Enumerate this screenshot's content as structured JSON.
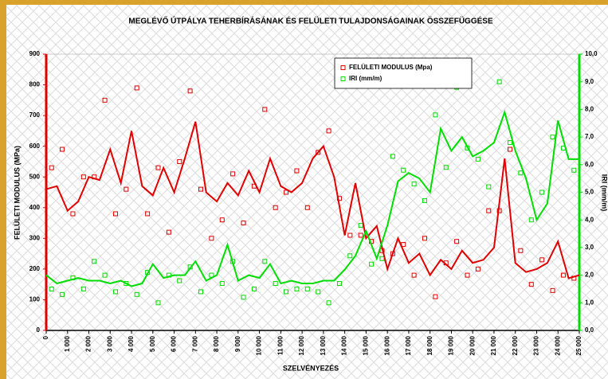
{
  "chart_data": {
    "type": "scatter",
    "title": "MEGLÉVŐ ÚTPÁLYA TEHERBÍRÁSÁNAK ÉS FELÜLETI TULAJDONSÁGAINAK ÖSSZEFÜGGÉSE",
    "x_label": "SZELVÉNYEZÉS",
    "y_label": "FELÜLETI MODULUS (MPa)",
    "y2_label": "IRI (mm/m)",
    "xlim": [
      0,
      25000
    ],
    "xticks": [
      0,
      {
        "value": 1000,
        "label": "1 000"
      },
      {
        "value": 2000,
        "label": "2 000"
      },
      {
        "value": 3000,
        "label": "3 000"
      },
      {
        "value": 4000,
        "label": "4 000"
      },
      {
        "value": 5000,
        "label": "5 000"
      },
      {
        "value": 6000,
        "label": "6 000"
      },
      {
        "value": 7000,
        "label": "7 000"
      },
      {
        "value": 8000,
        "label": "8 000"
      },
      {
        "value": 9000,
        "label": "9 000"
      },
      {
        "value": 10000,
        "label": "10 000"
      },
      {
        "value": 11000,
        "label": "11 000"
      },
      {
        "value": 12000,
        "label": "12 000"
      },
      {
        "value": 13000,
        "label": "13 000"
      },
      {
        "value": 14000,
        "label": "14 000"
      },
      {
        "value": 15000,
        "label": "15 000"
      },
      {
        "value": 16000,
        "label": "16 000"
      },
      {
        "value": 17000,
        "label": "17 000"
      },
      {
        "value": 18000,
        "label": "18 000"
      },
      {
        "value": 19000,
        "label": "19 000"
      },
      {
        "value": 20000,
        "label": "20 000"
      },
      {
        "value": 21000,
        "label": "21 000"
      },
      {
        "value": 22000,
        "label": "22 000"
      },
      {
        "value": 23000,
        "label": "23 000"
      },
      {
        "value": 24000,
        "label": "24 000"
      },
      {
        "value": 25000,
        "label": "25 000"
      }
    ],
    "ylim": [
      0,
      900
    ],
    "yticks": [
      0,
      100,
      200,
      300,
      400,
      500,
      600,
      700,
      800,
      900
    ],
    "y2lim": [
      0,
      10
    ],
    "y2ticks": [
      {
        "value": 0,
        "label": "0,0"
      },
      {
        "value": 1,
        "label": "1,0"
      },
      {
        "value": 2,
        "label": "2,0"
      },
      {
        "value": 3,
        "label": "3,0"
      },
      {
        "value": 4,
        "label": "4,0"
      },
      {
        "value": 5,
        "label": "5,0"
      },
      {
        "value": 6,
        "label": "6,0"
      },
      {
        "value": 7,
        "label": "7,0"
      },
      {
        "value": 8,
        "label": "8,0"
      },
      {
        "value": 9,
        "label": "9,0"
      },
      {
        "value": 10,
        "label": "10,0"
      }
    ],
    "legend": "top",
    "series": [
      {
        "name": "FELÜLETI MODULUS (Mpa)",
        "color": "#e00000",
        "kind": "scatter",
        "x": [
          250,
          750,
          1250,
          1750,
          2250,
          2750,
          3250,
          3750,
          4250,
          4750,
          5250,
          5750,
          6250,
          6750,
          7250,
          7750,
          8250,
          8750,
          9250,
          9750,
          10250,
          10750,
          11250,
          11750,
          12250,
          12750,
          13250,
          13750,
          14250,
          14750,
          15250,
          15750,
          16250,
          16750,
          17250,
          17750,
          18250,
          18750,
          19250,
          19750,
          20250,
          20750,
          21250,
          21750,
          22250,
          22750,
          23250,
          23750,
          24250,
          24750
        ],
        "values": [
          530,
          590,
          380,
          500,
          500,
          750,
          380,
          460,
          790,
          380,
          530,
          320,
          550,
          780,
          460,
          300,
          360,
          510,
          350,
          470,
          720,
          400,
          450,
          520,
          400,
          580,
          650,
          430,
          310,
          310,
          290,
          260,
          250,
          280,
          180,
          300,
          110,
          220,
          290,
          180,
          200,
          390,
          390,
          590,
          260,
          150,
          230,
          130,
          180,
          170
        ]
      },
      {
        "name": "IRI (mm/m)",
        "color": "#00dd00",
        "kind": "scatter",
        "axis": "y2",
        "x": [
          250,
          750,
          1250,
          1750,
          2250,
          2750,
          3250,
          3750,
          4250,
          4750,
          5250,
          5750,
          6250,
          6750,
          7250,
          7750,
          8250,
          8750,
          9250,
          9750,
          10250,
          10750,
          11250,
          11750,
          12250,
          12750,
          13250,
          13750,
          14250,
          14750,
          15250,
          15750,
          16250,
          16750,
          17250,
          17750,
          18250,
          18750,
          19250,
          19750,
          20250,
          20750,
          21250,
          21750,
          22250,
          22750,
          23250,
          23750,
          24250,
          24750
        ],
        "values": [
          1.5,
          1.3,
          1.9,
          1.5,
          2.5,
          2.0,
          1.4,
          1.7,
          1.3,
          2.1,
          1.0,
          2.0,
          1.8,
          2.3,
          1.4,
          2.0,
          1.7,
          2.5,
          1.2,
          1.5,
          2.5,
          1.7,
          1.4,
          1.5,
          1.5,
          1.4,
          1.0,
          1.7,
          2.7,
          3.8,
          2.4,
          2.6,
          6.3,
          5.8,
          5.3,
          4.7,
          7.8,
          5.9,
          8.8,
          6.6,
          6.2,
          5.2,
          9.0,
          6.8,
          5.7,
          4.0,
          5.0,
          7.0,
          6.6,
          5.8
        ]
      },
      {
        "color": "#e00000",
        "kind": "line",
        "x": [
          0,
          500,
          1000,
          1500,
          2000,
          2500,
          3000,
          3500,
          4000,
          4500,
          5000,
          5500,
          6000,
          6500,
          7000,
          7500,
          8000,
          8500,
          9000,
          9500,
          10000,
          10500,
          11000,
          11500,
          12000,
          12500,
          13000,
          13500,
          14000,
          14500,
          15000,
          15500,
          16000,
          16500,
          17000,
          17500,
          18000,
          18500,
          19000,
          19500,
          20000,
          20500,
          21000,
          21500,
          22000,
          22500,
          23000,
          23500,
          24000,
          24500,
          25000
        ],
        "values": [
          460,
          470,
          390,
          420,
          500,
          490,
          590,
          480,
          650,
          470,
          440,
          530,
          450,
          560,
          680,
          450,
          420,
          480,
          440,
          520,
          450,
          560,
          470,
          450,
          480,
          560,
          600,
          500,
          310,
          480,
          300,
          340,
          200,
          300,
          220,
          250,
          180,
          230,
          200,
          260,
          220,
          230,
          270,
          560,
          220,
          190,
          200,
          220,
          290,
          170,
          180
        ]
      },
      {
        "color": "#00dd00",
        "kind": "line",
        "axis": "y2",
        "x": [
          0,
          500,
          1000,
          1500,
          2000,
          2500,
          3000,
          3500,
          4000,
          4500,
          5000,
          5500,
          6000,
          6500,
          7000,
          7500,
          8000,
          8500,
          9000,
          9500,
          10000,
          10500,
          11000,
          11500,
          12000,
          12500,
          13000,
          13500,
          14000,
          14500,
          15000,
          15500,
          16000,
          16500,
          17000,
          17500,
          18000,
          18500,
          19000,
          19500,
          20000,
          20500,
          21000,
          21500,
          22000,
          22500,
          23000,
          23500,
          24000,
          24500,
          25000
        ],
        "values": [
          2.0,
          1.7,
          1.8,
          1.9,
          1.8,
          1.8,
          1.7,
          1.8,
          1.6,
          1.7,
          2.4,
          1.9,
          2.0,
          2.0,
          2.5,
          1.8,
          2.0,
          3.1,
          1.8,
          2.0,
          1.9,
          2.4,
          1.7,
          1.8,
          1.7,
          1.7,
          1.8,
          1.8,
          2.2,
          2.7,
          3.6,
          2.6,
          3.8,
          5.4,
          5.7,
          5.5,
          5.0,
          7.3,
          6.5,
          7.0,
          6.3,
          6.5,
          6.8,
          7.9,
          6.5,
          5.5,
          4.0,
          4.6,
          7.6,
          6.2,
          6.2
        ]
      }
    ]
  }
}
